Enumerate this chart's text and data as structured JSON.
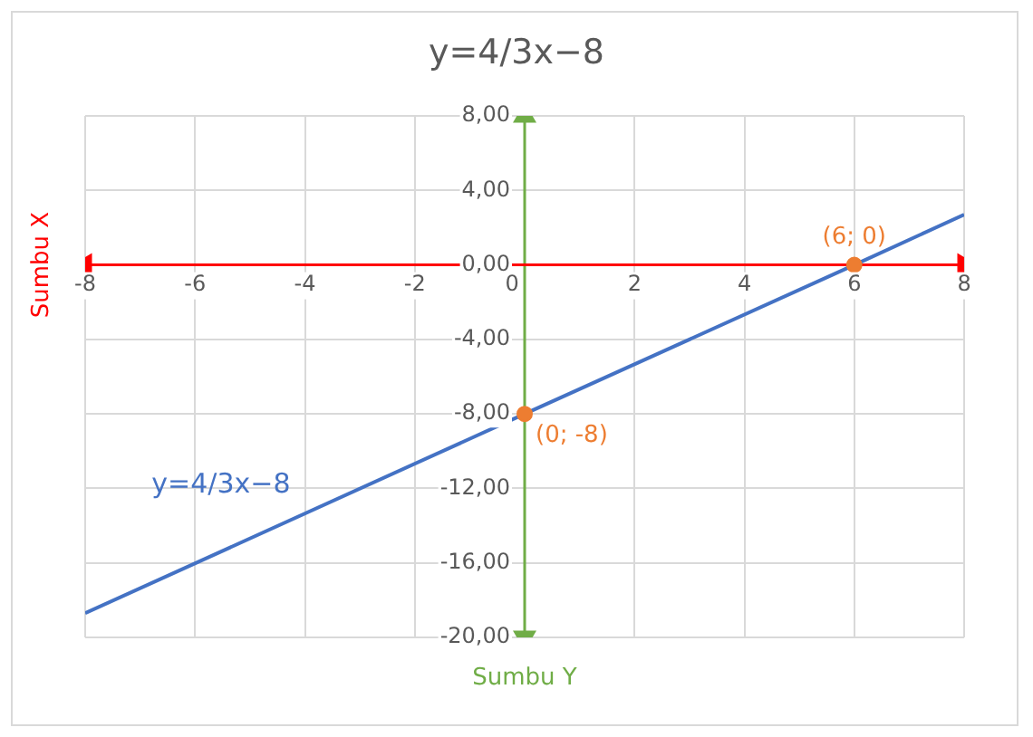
{
  "chart_data": {
    "type": "line",
    "title": "y=4/3x−8",
    "xlim": [
      -8,
      8
    ],
    "xticks": [
      -8,
      -6,
      -4,
      -2,
      0,
      2,
      4,
      6,
      8
    ],
    "ylim": [
      -20,
      8
    ],
    "yticks": [
      {
        "value": 8,
        "label": "8,00"
      },
      {
        "value": 4,
        "label": "4,00"
      },
      {
        "value": 0,
        "label": "0,00"
      },
      {
        "value": -4,
        "label": "-4,00"
      },
      {
        "value": -8,
        "label": "-8,00"
      },
      {
        "value": -12,
        "label": "-12,00"
      },
      {
        "value": -16,
        "label": "-16,00"
      },
      {
        "value": -20,
        "label": "-20,00"
      }
    ],
    "grid": true,
    "legend": false,
    "series": [
      {
        "name": "Sumbu X",
        "color": "#ff0000",
        "x": [
          -8,
          8
        ],
        "values": [
          0,
          0
        ],
        "marker": "triangle"
      },
      {
        "name": "Sumbu Y",
        "color": "#70ad47",
        "x": [
          0,
          0
        ],
        "values": [
          -20,
          8
        ],
        "marker": "triangle"
      },
      {
        "name": "y=4/3x−8",
        "color": "#4472c4",
        "x": [
          -8,
          0,
          6,
          8
        ],
        "values": [
          -18.7,
          -8,
          0,
          2.7
        ],
        "marker": "none"
      },
      {
        "type": "scatter",
        "color": "#ed7d31",
        "x": [
          0,
          6
        ],
        "values": [
          -8,
          0
        ],
        "marker": "circle"
      }
    ],
    "annotations": [
      {
        "text": "(0; -8)",
        "x": 0,
        "y": -8
      },
      {
        "text": "(6; 0)",
        "x": 6,
        "y": 0
      }
    ]
  }
}
